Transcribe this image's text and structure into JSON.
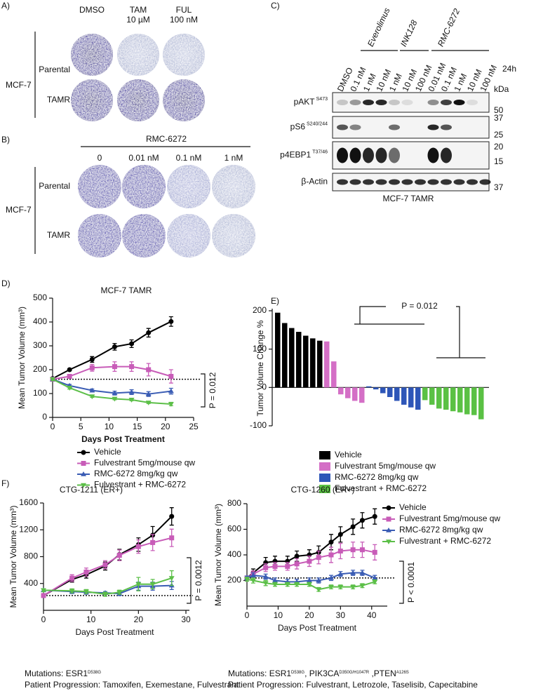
{
  "figure": {
    "panel_labels": [
      "A)",
      "B)",
      "C)",
      "D)",
      "E)",
      "F)"
    ],
    "panel_a": {
      "columns": [
        {
          "name": "DMSO"
        },
        {
          "name": "TAM",
          "dose": "10 µM"
        },
        {
          "name": "FUL",
          "dose": "100 nM"
        }
      ],
      "rows": [
        "Parental",
        "TAMR"
      ],
      "cell_line": "MCF-7"
    },
    "panel_b": {
      "treatment": "RMC-6272",
      "columns": [
        "0",
        "0.01 nM",
        "0.1 nM",
        "1 nM"
      ],
      "rows": [
        "Parental",
        "TAMR"
      ],
      "cell_line": "MCF-7"
    },
    "panel_c": {
      "groups": [
        "Everolimus",
        "INK128",
        "RMC-6272"
      ],
      "lanes": [
        "DMSO",
        "0.1 nM",
        "1 nM",
        "10 nM",
        "1 nM",
        "10 nM",
        "100 nM",
        "0.01 nM",
        "0.1 nM",
        "1 nM",
        "10 nM",
        "100 nM"
      ],
      "time": "24h",
      "unit": "kDa",
      "blots": [
        {
          "name": "pAKT",
          "site": "S473",
          "markers": [
            50
          ]
        },
        {
          "name": "pS6",
          "site": "S240/244",
          "markers": [
            37,
            25
          ]
        },
        {
          "name": "p4EBP1",
          "site": "T37/46",
          "markers": [
            20,
            15
          ]
        },
        {
          "name": "β-Actin",
          "markers": [
            37
          ]
        }
      ],
      "caption": "MCF-7 TAMR"
    }
  },
  "chart_data": [
    {
      "type": "line",
      "title": "MCF-7 TAMR",
      "x_label": "Days Post Treatment",
      "y_label": "Mean Tumor Volume (mm³)",
      "x": [
        0,
        3,
        7,
        11,
        14,
        17,
        21
      ],
      "series": [
        {
          "name": "Vehicle",
          "color": "#000000",
          "marker": "circle",
          "values": [
            163,
            200,
            243,
            296,
            309,
            355,
            402
          ],
          "errors": [
            5,
            4,
            12,
            14,
            16,
            18,
            20
          ]
        },
        {
          "name": "Fulvestrant 5mg/mouse qw",
          "color": "#c85cb8",
          "marker": "square",
          "values": [
            160,
            172,
            208,
            213,
            213,
            200,
            172
          ],
          "errors": [
            5,
            5,
            14,
            20,
            20,
            26,
            28
          ]
        },
        {
          "name": "RMC-6272 8mg/kg qw",
          "color": "#3a5cb4",
          "marker": "triangle-up",
          "values": [
            160,
            133,
            113,
            102,
            106,
            98,
            110
          ],
          "errors": [
            5,
            5,
            6,
            8,
            10,
            10,
            12
          ]
        },
        {
          "name": "Fulvestrant + RMC-6272",
          "color": "#5cbf48",
          "marker": "triangle-down",
          "values": [
            160,
            124,
            88,
            78,
            74,
            62,
            56
          ],
          "errors": [
            5,
            5,
            4,
            4,
            4,
            4,
            7
          ]
        }
      ],
      "xlim": [
        0,
        25
      ],
      "ylim": [
        0,
        500
      ],
      "xticks": [
        0,
        5,
        10,
        15,
        20,
        25
      ],
      "yticks": [
        0,
        100,
        200,
        300,
        400,
        500
      ],
      "reference_line": 160,
      "annotation": "P = 0.012",
      "legend": "below"
    },
    {
      "type": "waterfall",
      "y_label": "Tumor Volume Change %",
      "series": [
        {
          "name": "Vehicle",
          "color": "#000000",
          "values": [
            195,
            168,
            155,
            145,
            135,
            128,
            122
          ]
        },
        {
          "name": "Fulvestrant 5mg/mouse qw",
          "color": "#d46fc6",
          "values": [
            120,
            68,
            -18,
            -28,
            -35,
            -40
          ]
        },
        {
          "name": "RMC-6272 8mg/kg qw",
          "color": "#2e56b8",
          "values": [
            3,
            -5,
            -15,
            -25,
            -35,
            -45,
            -52,
            -58
          ]
        },
        {
          "name": "Fulvestrant + RMC-6272",
          "color": "#5ac144",
          "values": [
            -33,
            -45,
            -55,
            -58,
            -62,
            -65,
            -70,
            -72,
            -83
          ]
        }
      ],
      "ylim": [
        -100,
        200
      ],
      "yticks": [
        -100,
        0,
        100,
        200
      ],
      "annotation": "P = 0.012",
      "legend": "below"
    },
    {
      "type": "line",
      "title": "CTG-1211 (ER+)",
      "x_label": "Days Post Treatment",
      "y_label": "Mean Tumor Volume (mm³)",
      "x": [
        0,
        6,
        9,
        13,
        16,
        20,
        23,
        27
      ],
      "series": [
        {
          "color": "#000000",
          "marker": "circle",
          "values": [
            220,
            460,
            530,
            660,
            830,
            980,
            1120,
            1400
          ],
          "errors": [
            20,
            40,
            50,
            60,
            80,
            100,
            130,
            130
          ]
        },
        {
          "color": "#c85cb8",
          "marker": "square",
          "values": [
            220,
            480,
            570,
            680,
            820,
            950,
            1010,
            1080
          ],
          "errors": [
            20,
            50,
            60,
            60,
            80,
            100,
            120,
            130
          ]
        },
        {
          "color": "#3a5cb4",
          "marker": "triangle-up",
          "values": [
            300,
            280,
            270,
            260,
            250,
            360,
            360,
            370
          ],
          "errors": [
            20,
            30,
            30,
            20,
            30,
            60,
            60,
            60
          ]
        },
        {
          "color": "#5cbf48",
          "marker": "triangle-down",
          "values": [
            300,
            290,
            280,
            240,
            270,
            390,
            390,
            480
          ],
          "errors": [
            20,
            30,
            30,
            30,
            30,
            100,
            70,
            110
          ]
        }
      ],
      "xlim": [
        0,
        30
      ],
      "ylim": [
        0,
        1600
      ],
      "xticks": [
        0,
        10,
        20,
        30
      ],
      "yticks": [
        400,
        800,
        1200,
        1600
      ],
      "reference_line": 220,
      "annotation": "P = 0.0012",
      "mutations": [
        {
          "text": "Mutations: ESR1"
        },
        {
          "sup": "D538G"
        }
      ],
      "progression": "Patient Progression: Tamoxifen, Exemestane, Fulvestrant"
    },
    {
      "type": "line",
      "title": "CTG-1260 (ER+)",
      "x_label": "Days Post Treatment",
      "y_label": "Mean Tumor Volume (mm³)",
      "x": [
        0,
        2,
        6,
        9,
        13,
        16,
        20,
        23,
        27,
        30,
        34,
        37,
        41
      ],
      "series": [
        {
          "name": "Vehicle",
          "color": "#000000",
          "marker": "circle",
          "values": [
            220,
            260,
            340,
            350,
            350,
            390,
            400,
            420,
            500,
            560,
            620,
            670,
            700
          ],
          "errors": [
            15,
            30,
            40,
            40,
            40,
            40,
            40,
            50,
            60,
            60,
            60,
            60,
            60
          ]
        },
        {
          "name": "Fulvestrant 5mg/mouse qw",
          "color": "#c85cb8",
          "marker": "square",
          "values": [
            220,
            250,
            300,
            310,
            310,
            330,
            350,
            380,
            400,
            430,
            440,
            440,
            420
          ],
          "errors": [
            15,
            25,
            30,
            30,
            30,
            40,
            40,
            50,
            60,
            60,
            60,
            60,
            60
          ]
        },
        {
          "name": "RMC-6272 8mg/kg qw",
          "color": "#3a5cb4",
          "marker": "triangle-up",
          "values": [
            220,
            240,
            230,
            200,
            190,
            190,
            200,
            200,
            220,
            250,
            260,
            260,
            220
          ],
          "errors": [
            15,
            20,
            20,
            20,
            20,
            20,
            20,
            20,
            20,
            20,
            20,
            20,
            20
          ]
        },
        {
          "name": "Fulvestrant + RMC-6272",
          "color": "#5cbf48",
          "marker": "triangle-down",
          "values": [
            210,
            200,
            180,
            170,
            170,
            170,
            170,
            130,
            150,
            150,
            150,
            160,
            190
          ],
          "errors": [
            15,
            20,
            20,
            15,
            15,
            15,
            15,
            15,
            15,
            15,
            15,
            15,
            15
          ]
        }
      ],
      "xlim": [
        0,
        45
      ],
      "ylim": [
        0,
        800
      ],
      "xticks": [
        0,
        10,
        20,
        30,
        40
      ],
      "yticks": [
        200,
        400,
        600,
        800
      ],
      "reference_line": 220,
      "annotation": "P < 0.0001",
      "legend": "right",
      "mutations": [
        {
          "text": "Mutations: ESR1"
        },
        {
          "sup": "D538G"
        },
        {
          "text": ", PIK3CA"
        },
        {
          "sup": "D350G/H1047R"
        },
        {
          "text": " ,PTEN"
        },
        {
          "sup": "A126S"
        }
      ],
      "progression": "Patient Progression: Fulvestrant, Letrozole, Taselisib, Capecitabine"
    }
  ]
}
